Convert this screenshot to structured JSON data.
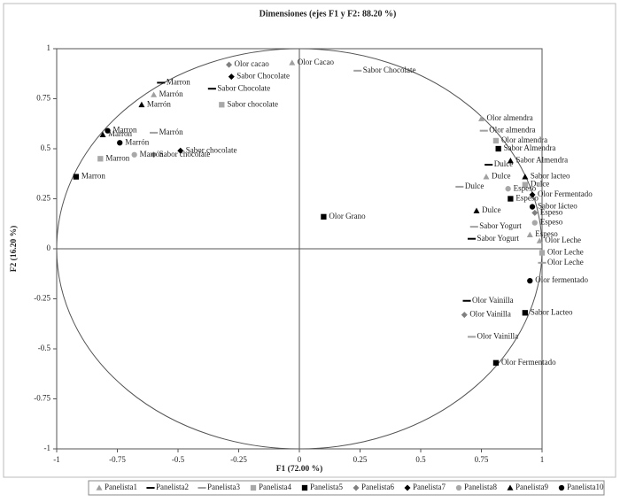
{
  "chart_data": {
    "type": "scatter",
    "title": "Dimensiones (ejes F1 y F2: 88.20 %)",
    "x_label": "F1 (72.00 %)",
    "y_label": "F2 (16.20 %)",
    "xlim": [
      -1,
      1
    ],
    "ylim": [
      -1,
      1
    ],
    "xticks": [
      -1,
      -0.75,
      -0.5,
      -0.25,
      0,
      0.25,
      0.5,
      0.75,
      1
    ],
    "yticks": [
      -1,
      -0.75,
      -0.5,
      -0.25,
      0,
      0.25,
      0.5,
      0.75,
      1
    ],
    "legend": "bottom",
    "series": [
      {
        "name": "Panelista1",
        "color": "#a0a0a0",
        "marker": "triangle",
        "x": [
          -0.6,
          -0.03,
          0.75,
          0.77,
          0.95,
          0.99
        ],
        "y": [
          0.77,
          0.93,
          0.65,
          0.36,
          0.07,
          0.04
        ],
        "labels": [
          "Marrón",
          "Olor Cacao",
          "Olor almendra",
          "Dulce",
          "Espeso",
          "Olor Leche"
        ]
      },
      {
        "name": "Panelista2",
        "color": "#000000",
        "marker": "dash",
        "x": [
          -0.57,
          -0.36,
          0.78,
          0.71,
          0.69
        ],
        "y": [
          0.83,
          0.8,
          0.42,
          0.05,
          -0.26
        ],
        "labels": [
          "Marron",
          "Sabor Chocolate",
          "Dulce",
          "Sabor Yogurt",
          "Olor Vainilla"
        ]
      },
      {
        "name": "Panelista3",
        "color": "#a0a0a0",
        "marker": "dash",
        "x": [
          -0.6,
          0.24,
          0.76,
          0.66,
          0.72,
          1.0,
          0.71
        ],
        "y": [
          0.58,
          0.89,
          0.59,
          0.31,
          0.11,
          -0.07,
          -0.44
        ],
        "labels": [
          "Marrón",
          "Sabor Chocolate",
          "Olor almendra",
          "Dulce",
          "Sabor Yogurt",
          "Olor Leche",
          "Olor Vainilla"
        ]
      },
      {
        "name": "Panelista4",
        "color": "#a8a8a8",
        "marker": "square",
        "x": [
          -0.82,
          -0.32,
          0.81,
          0.93,
          1.0
        ],
        "y": [
          0.45,
          0.72,
          0.54,
          0.32,
          -0.02
        ],
        "labels": [
          "Marron",
          "Sabor chocolate",
          "Olor almendra",
          "Dulce",
          "Olor Leche"
        ]
      },
      {
        "name": "Panelista5",
        "color": "#000000",
        "marker": "square",
        "x": [
          -0.92,
          0.1,
          0.82,
          0.87,
          0.93,
          0.81
        ],
        "y": [
          0.36,
          0.16,
          0.5,
          0.25,
          -0.32,
          -0.57
        ],
        "labels": [
          "Marron",
          "Olor Grano",
          "Sabor Almendra",
          "Espeso",
          "Sabor Lacteo",
          "Olor Fermentado"
        ]
      },
      {
        "name": "Panelista6",
        "color": "#808080",
        "marker": "diamond",
        "x": [
          -0.29,
          -0.6,
          0.97,
          0.68
        ],
        "y": [
          0.92,
          0.47,
          0.18,
          -0.33
        ],
        "labels": [
          "Olor cacao",
          "Sabor chocolate",
          "Espeso",
          "Olor Vainilla"
        ]
      },
      {
        "name": "Panelista7",
        "color": "#000000",
        "marker": "diamond",
        "x": [
          -0.49,
          -0.28,
          0.96
        ],
        "y": [
          0.49,
          0.86,
          0.27
        ],
        "labels": [
          "Sabor chocolate",
          "Sabor Chocolate",
          "Olor Fermentado"
        ]
      },
      {
        "name": "Panelista8",
        "color": "#a8a8a8",
        "marker": "circle",
        "x": [
          -0.68,
          0.86,
          0.97
        ],
        "y": [
          0.47,
          0.3,
          0.13
        ],
        "labels": [
          "Marrón",
          "Espeso",
          "Espeso"
        ]
      },
      {
        "name": "Panelista9",
        "color": "#000000",
        "marker": "triangle",
        "x": [
          -0.81,
          -0.65,
          0.87,
          0.93,
          0.73
        ],
        "y": [
          0.57,
          0.72,
          0.44,
          0.36,
          0.19
        ],
        "labels": [
          "Marron",
          "Marrón",
          "Sabor Almendra",
          "Sabor lacteo",
          "Dulce"
        ]
      },
      {
        "name": "Panelista10",
        "color": "#000000",
        "marker": "circle",
        "x": [
          -0.74,
          -0.79,
          0.96,
          0.95
        ],
        "y": [
          0.53,
          0.59,
          0.21,
          -0.16
        ],
        "labels": [
          "Marrón",
          "Marron",
          "Sabor lácteo",
          "Olor fermentado"
        ]
      }
    ]
  }
}
